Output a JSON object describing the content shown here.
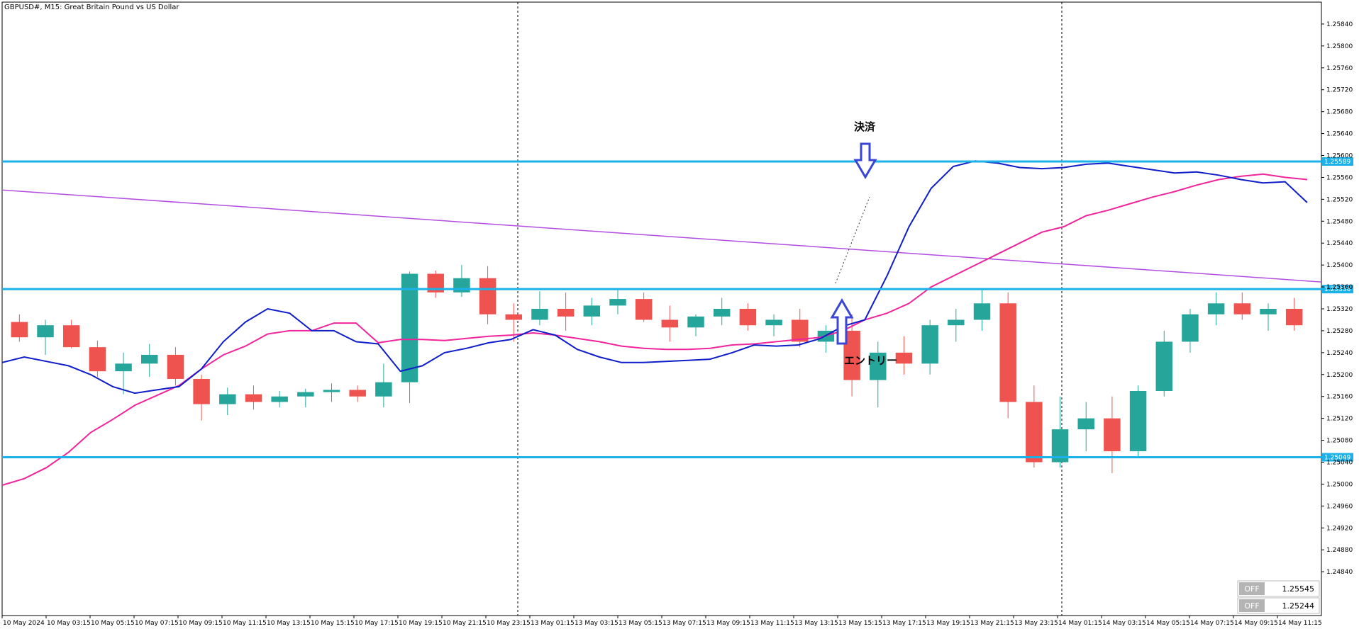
{
  "chart_data": {
    "type": "candlestick",
    "title": "GBPUSD#, M15:  Great Britain Pound vs US Dollar",
    "ylim": [
      1.2476,
      1.2588
    ],
    "y_ticks": [
      "1.25840",
      "1.25800",
      "1.25760",
      "1.25720",
      "1.25680",
      "1.25640",
      "1.25600",
      "1.25560",
      "1.25520",
      "1.25480",
      "1.25440",
      "1.25400",
      "1.25360",
      "1.25320",
      "1.25280",
      "1.25240",
      "1.25200",
      "1.25160",
      "1.25120",
      "1.25080",
      "1.25040",
      "1.25000",
      "1.24960",
      "1.24920",
      "1.24880",
      "1.24840"
    ],
    "x_ticks": [
      "10 May 2024",
      "10 May 03:15",
      "10 May 05:15",
      "10 May 07:15",
      "10 May 09:15",
      "10 May 11:15",
      "10 May 13:15",
      "10 May 15:15",
      "10 May 17:15",
      "10 May 19:15",
      "10 May 21:15",
      "10 May 23:15",
      "13 May 01:15",
      "13 May 03:15",
      "13 May 05:15",
      "13 May 07:15",
      "13 May 09:15",
      "13 May 11:15",
      "13 May 13:15",
      "13 May 15:15",
      "13 May 17:15",
      "13 May 19:15",
      "13 May 21:15",
      "13 May 23:15",
      "14 May 01:15",
      "14 May 03:15",
      "14 May 05:15",
      "14 May 07:15",
      "14 May 09:15",
      "14 May 11:15"
    ],
    "horizontal_levels": [
      {
        "value": 1.25589,
        "label": "1.25589",
        "color": "#1ab2e8"
      },
      {
        "value": 1.25356,
        "label": "1.25356",
        "color": "#1ab2e8"
      },
      {
        "value": 1.25049,
        "label": "1.25049",
        "color": "#1ab2e8"
      }
    ],
    "trendline": {
      "color": "#b24de0",
      "start": 1.25537,
      "end": 1.25369
    },
    "ma_fast": {
      "color": "#0f1ec8",
      "values": [
        1.25222,
        1.25232,
        1.25224,
        1.25216,
        1.252,
        1.25178,
        1.25166,
        1.25172,
        1.25178,
        1.2521,
        1.2526,
        1.25296,
        1.2532,
        1.25312,
        1.2528,
        1.2528,
        1.2526,
        1.25256,
        1.25206,
        1.25216,
        1.2524,
        1.25248,
        1.25258,
        1.25264,
        1.25282,
        1.25272,
        1.25246,
        1.25232,
        1.25222,
        1.25222,
        1.25224,
        1.25226,
        1.25228,
        1.2524,
        1.25254,
        1.25252,
        1.25254,
        1.25266,
        1.25288,
        1.253,
        1.2538,
        1.2547,
        1.2554,
        1.2558,
        1.2559,
        1.25586,
        1.25578,
        1.25576,
        1.25578,
        1.25584,
        1.25586,
        1.2558,
        1.25574,
        1.25568,
        1.2557,
        1.25564,
        1.25556,
        1.2555,
        1.25552,
        1.25514
      ]
    },
    "ma_slow": {
      "color": "#f0259c",
      "values": [
        1.24998,
        1.2501,
        1.2503,
        1.25058,
        1.25094,
        1.25118,
        1.25144,
        1.25162,
        1.2518,
        1.2521,
        1.25236,
        1.25252,
        1.25274,
        1.2528,
        1.2528,
        1.25294,
        1.25294,
        1.25258,
        1.25264,
        1.25264,
        1.25262,
        1.25266,
        1.2527,
        1.25272,
        1.25276,
        1.25272,
        1.25266,
        1.2526,
        1.25252,
        1.25248,
        1.25246,
        1.25246,
        1.25248,
        1.25254,
        1.25256,
        1.2526,
        1.25264,
        1.25268,
        1.2528,
        1.253,
        1.25312,
        1.2533,
        1.2536,
        1.2538,
        1.254,
        1.2542,
        1.2544,
        1.2546,
        1.2547,
        1.2549,
        1.255,
        1.25512,
        1.25524,
        1.25534,
        1.25546,
        1.25556,
        1.25562,
        1.25566,
        1.2556,
        1.25556
      ]
    },
    "candles": [
      {
        "o": 1.25296,
        "h": 1.2531,
        "l": 1.2526,
        "c": 1.25268
      },
      {
        "o": 1.25268,
        "h": 1.253,
        "l": 1.25236,
        "c": 1.2529
      },
      {
        "o": 1.2529,
        "h": 1.253,
        "l": 1.25248,
        "c": 1.2525
      },
      {
        "o": 1.2525,
        "h": 1.25262,
        "l": 1.25196,
        "c": 1.25206
      },
      {
        "o": 1.25206,
        "h": 1.2524,
        "l": 1.25164,
        "c": 1.2522
      },
      {
        "o": 1.2522,
        "h": 1.25256,
        "l": 1.25196,
        "c": 1.25236
      },
      {
        "o": 1.25236,
        "h": 1.2525,
        "l": 1.2518,
        "c": 1.25192
      },
      {
        "o": 1.25192,
        "h": 1.252,
        "l": 1.25116,
        "c": 1.25146
      },
      {
        "o": 1.25146,
        "h": 1.25176,
        "l": 1.25126,
        "c": 1.25164
      },
      {
        "o": 1.25164,
        "h": 1.2518,
        "l": 1.25136,
        "c": 1.2515
      },
      {
        "o": 1.2515,
        "h": 1.2517,
        "l": 1.2514,
        "c": 1.2516
      },
      {
        "o": 1.2516,
        "h": 1.25174,
        "l": 1.2514,
        "c": 1.25168
      },
      {
        "o": 1.25168,
        "h": 1.25184,
        "l": 1.2515,
        "c": 1.25172
      },
      {
        "o": 1.25172,
        "h": 1.2518,
        "l": 1.2515,
        "c": 1.2516
      },
      {
        "o": 1.2516,
        "h": 1.2522,
        "l": 1.2514,
        "c": 1.25186
      },
      {
        "o": 1.25186,
        "h": 1.25388,
        "l": 1.25148,
        "c": 1.25384
      },
      {
        "o": 1.25384,
        "h": 1.2539,
        "l": 1.2534,
        "c": 1.2535
      },
      {
        "o": 1.2535,
        "h": 1.254,
        "l": 1.25342,
        "c": 1.25376
      },
      {
        "o": 1.25376,
        "h": 1.25398,
        "l": 1.25292,
        "c": 1.2531
      },
      {
        "o": 1.2531,
        "h": 1.2533,
        "l": 1.2526,
        "c": 1.253
      },
      {
        "o": 1.253,
        "h": 1.25352,
        "l": 1.2529,
        "c": 1.2532
      },
      {
        "o": 1.2532,
        "h": 1.2535,
        "l": 1.2528,
        "c": 1.25306
      },
      {
        "o": 1.25306,
        "h": 1.2534,
        "l": 1.2529,
        "c": 1.25326
      },
      {
        "o": 1.25326,
        "h": 1.25356,
        "l": 1.2531,
        "c": 1.25338
      },
      {
        "o": 1.25338,
        "h": 1.2535,
        "l": 1.25296,
        "c": 1.253
      },
      {
        "o": 1.253,
        "h": 1.25326,
        "l": 1.2526,
        "c": 1.25286
      },
      {
        "o": 1.25286,
        "h": 1.2531,
        "l": 1.2527,
        "c": 1.25306
      },
      {
        "o": 1.25306,
        "h": 1.2534,
        "l": 1.2529,
        "c": 1.2532
      },
      {
        "o": 1.2532,
        "h": 1.2533,
        "l": 1.2528,
        "c": 1.2529
      },
      {
        "o": 1.2529,
        "h": 1.2531,
        "l": 1.2527,
        "c": 1.253
      },
      {
        "o": 1.253,
        "h": 1.2532,
        "l": 1.2525,
        "c": 1.2526
      },
      {
        "o": 1.2526,
        "h": 1.2529,
        "l": 1.2524,
        "c": 1.2528
      },
      {
        "o": 1.2528,
        "h": 1.2531,
        "l": 1.2516,
        "c": 1.2519
      },
      {
        "o": 1.2519,
        "h": 1.2526,
        "l": 1.2514,
        "c": 1.2524
      },
      {
        "o": 1.2524,
        "h": 1.2527,
        "l": 1.252,
        "c": 1.2522
      },
      {
        "o": 1.2522,
        "h": 1.253,
        "l": 1.252,
        "c": 1.2529
      },
      {
        "o": 1.2529,
        "h": 1.2532,
        "l": 1.2526,
        "c": 1.253
      },
      {
        "o": 1.253,
        "h": 1.25356,
        "l": 1.2528,
        "c": 1.2533
      },
      {
        "o": 1.2533,
        "h": 1.2535,
        "l": 1.2512,
        "c": 1.2515
      },
      {
        "o": 1.2515,
        "h": 1.2518,
        "l": 1.2503,
        "c": 1.2504
      },
      {
        "o": 1.2504,
        "h": 1.2516,
        "l": 1.2503,
        "c": 1.251
      },
      {
        "o": 1.251,
        "h": 1.2515,
        "l": 1.2506,
        "c": 1.2512
      },
      {
        "o": 1.2512,
        "h": 1.2516,
        "l": 1.2502,
        "c": 1.2506
      },
      {
        "o": 1.2506,
        "h": 1.2518,
        "l": 1.2505,
        "c": 1.2517
      },
      {
        "o": 1.2517,
        "h": 1.2528,
        "l": 1.2516,
        "c": 1.2526
      },
      {
        "o": 1.2526,
        "h": 1.2532,
        "l": 1.2524,
        "c": 1.2531
      },
      {
        "o": 1.2531,
        "h": 1.2535,
        "l": 1.2529,
        "c": 1.2533
      },
      {
        "o": 1.2533,
        "h": 1.2535,
        "l": 1.253,
        "c": 1.2531
      },
      {
        "o": 1.2531,
        "h": 1.2533,
        "l": 1.2528,
        "c": 1.2532
      },
      {
        "o": 1.2532,
        "h": 1.2534,
        "l": 1.2528,
        "c": 1.2529
      }
    ]
  },
  "annotations": {
    "exit_label": "決済",
    "entry_label": "エントリー"
  },
  "panel": {
    "row1_off": "OFF",
    "row1_value": "1.25545",
    "row2_off": "OFF",
    "row2_value": "1.25244"
  }
}
